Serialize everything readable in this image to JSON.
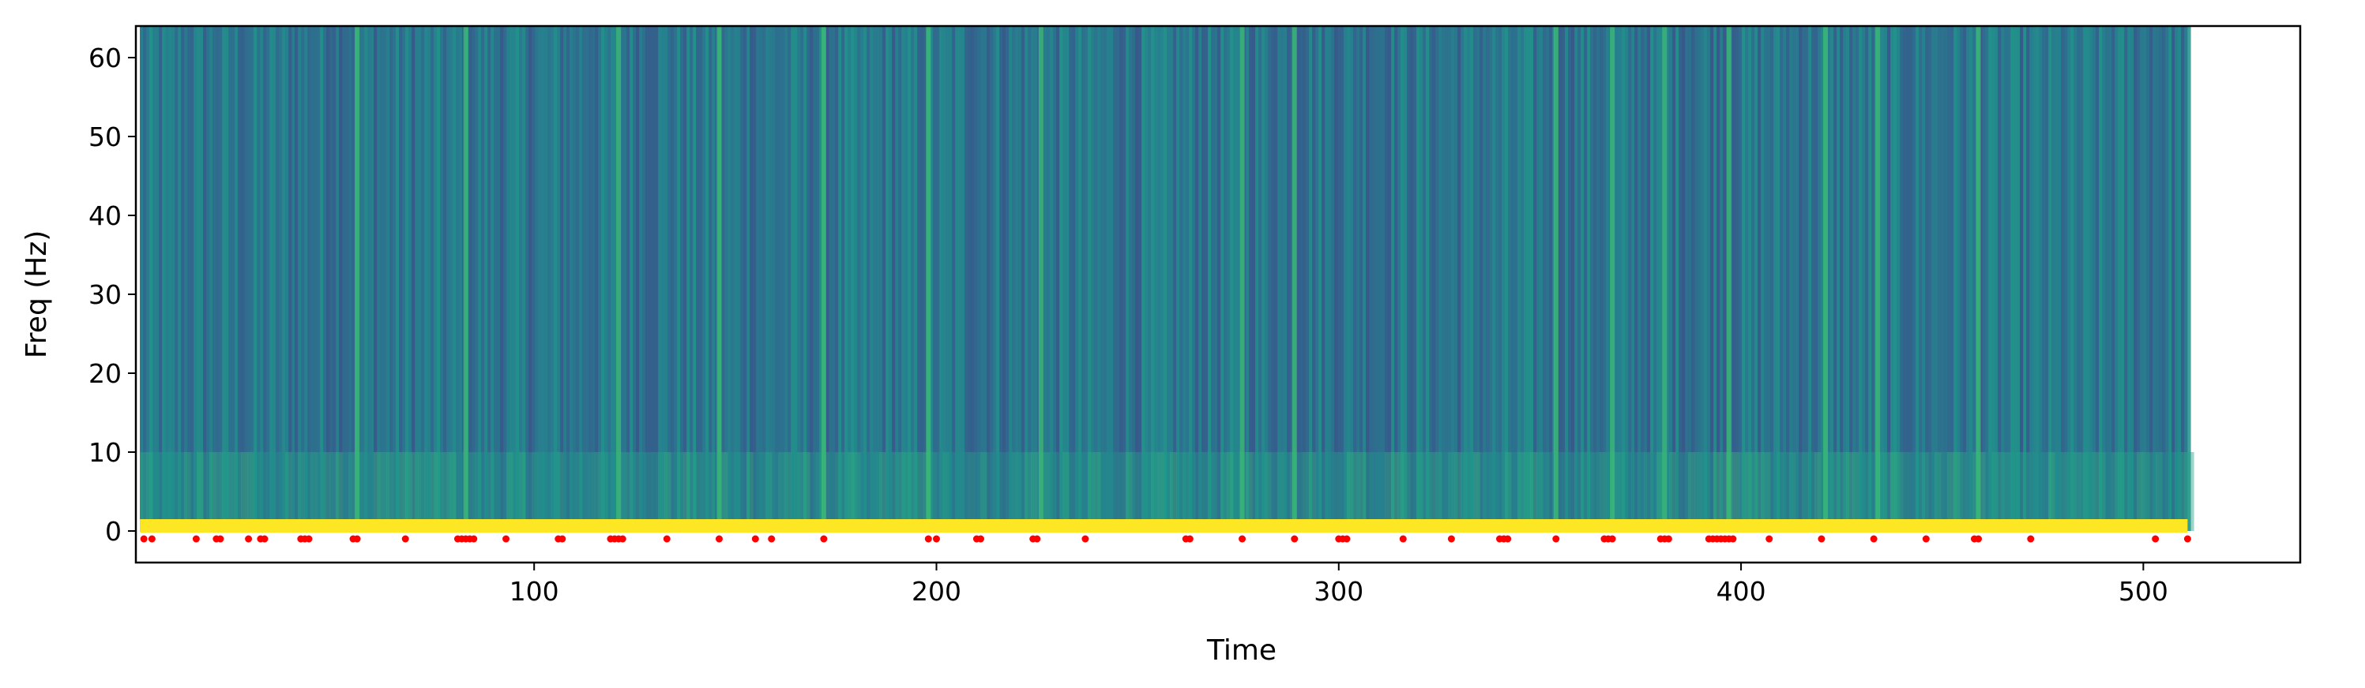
{
  "chart_data": {
    "type": "heatmap",
    "title": "",
    "xlabel": "Time",
    "ylabel": "Freq (Hz)",
    "xlim": [
      1,
      539
    ],
    "ylim": [
      -4,
      64
    ],
    "x_ticks": [
      100,
      200,
      300,
      400,
      500
    ],
    "y_ticks": [
      0,
      10,
      20,
      30,
      40,
      50,
      60
    ],
    "spectrogram": {
      "time_range": [
        2,
        511
      ],
      "freq_range": [
        0,
        64
      ],
      "colormap": "viridis",
      "low_freq_band_hz": [
        0,
        1.5
      ],
      "bright_bands_time": [
        56,
        83,
        121,
        146,
        172,
        198,
        226,
        276,
        289,
        354,
        368,
        381,
        397,
        421,
        434,
        459
      ]
    },
    "marker_series": {
      "color": "#ff0000",
      "y": -1,
      "x": [
        3,
        5,
        16,
        21,
        22,
        29,
        32,
        33,
        42,
        43,
        44,
        55,
        56,
        68,
        81,
        82,
        83,
        84,
        85,
        93,
        106,
        107,
        119,
        120,
        121,
        122,
        133,
        146,
        155,
        159,
        172,
        198,
        200,
        210,
        211,
        224,
        225,
        237,
        262,
        263,
        276,
        289,
        300,
        301,
        302,
        316,
        328,
        340,
        341,
        342,
        354,
        366,
        367,
        368,
        380,
        381,
        382,
        392,
        393,
        394,
        395,
        396,
        397,
        398,
        407,
        420,
        433,
        446,
        458,
        459,
        472,
        503,
        511
      ]
    }
  }
}
